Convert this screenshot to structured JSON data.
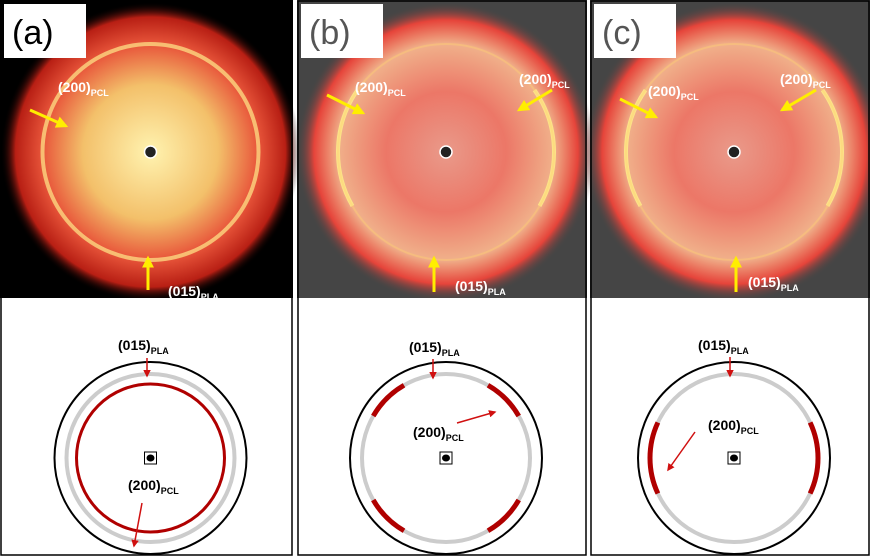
{
  "panels": [
    {
      "label": "(a)",
      "image_annotations": [
        {
          "text": "(200)",
          "sub": "PCL"
        },
        {
          "text": "(015)",
          "sub": "PLA"
        }
      ],
      "diagram_annotations": [
        {
          "text": "(015)",
          "sub": "PLA"
        },
        {
          "text": "(200)",
          "sub": "PCL"
        }
      ]
    },
    {
      "label": "(b)",
      "image_annotations": [
        {
          "text": "(200)",
          "sub": "PCL"
        },
        {
          "text": "(200)",
          "sub": "PCL"
        },
        {
          "text": "(015)",
          "sub": "PLA"
        }
      ],
      "diagram_annotations": [
        {
          "text": "(015)",
          "sub": "PLA"
        },
        {
          "text": "(200)",
          "sub": "PCL"
        }
      ]
    },
    {
      "label": "(c)",
      "image_annotations": [
        {
          "text": "(200)",
          "sub": "PCL"
        },
        {
          "text": "(200)",
          "sub": "PCL"
        },
        {
          "text": "(015)",
          "sub": "PLA"
        }
      ],
      "diagram_annotations": [
        {
          "text": "(015)",
          "sub": "PLA"
        },
        {
          "text": "(200)",
          "sub": "PCL"
        }
      ]
    }
  ]
}
